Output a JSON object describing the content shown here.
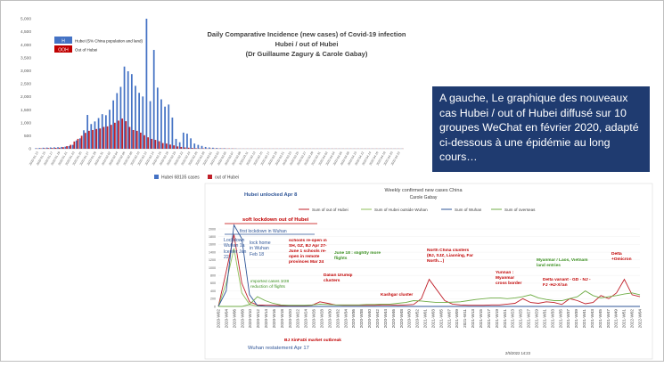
{
  "note_text": "A gauche, Le graphique des nouveaux cas Hubei / out of Hubei diffusé sur 10 groupes WeChat en février 2020, adapté ci-dessous à une épidémie au long cours…",
  "colors": {
    "hubei": "#4472c4",
    "out": "#c0202a",
    "outside_wuhan": "#8fbf5a",
    "wuhan": "#2f5597",
    "overseas": "#70ad47",
    "annot_red": "#c00000",
    "annot_blue": "#2f5597",
    "annot_green": "#3a8f1f",
    "note_bg": "#1f3b70"
  },
  "chart_data": [
    {
      "type": "bar",
      "title": "Daily Comparative  Incidence (new cases) of Covid-19 infection",
      "subtitle1": "Hubei / out of Hubei",
      "subtitle2": "(Dr Guillaume Zagury & Carole Gabay)",
      "legend_top": [
        {
          "swatch": "H",
          "label": "Hubei (5% China population and land)"
        },
        {
          "swatch": "OOH",
          "label": "Out of Hubei"
        }
      ],
      "legend_bottom": [
        {
          "label": "Hubei 68135 cases"
        },
        {
          "label": "out of Hubei"
        }
      ],
      "y_ticks": [
        "5,000",
        "4,500",
        "4,000",
        "3,500",
        "3,000",
        "2,500",
        "2,000",
        "1,500",
        "1,000",
        "500",
        "0"
      ],
      "ylim": [
        0,
        5000
      ],
      "x_tick_labels": [
        "2020.01.13",
        "2020.01.15",
        "2020.01.17",
        "2020.01.19",
        "2020.01.21",
        "2020.01.23",
        "2020.01.25",
        "2020.01.27",
        "2020.01.29",
        "2020.01.31",
        "2020.02.02",
        "2020.02.04",
        "2020.02.06",
        "2020.02.08",
        "2020.02.10",
        "2020.02.12",
        "2020.02.14",
        "2020.02.16",
        "2020.02.18",
        "2020.02.20",
        "2020.02.22",
        "2020.02.24",
        "2020.02.26",
        "2020.02.28",
        "2020.03.01",
        "2020.03.03",
        "2020.03.05",
        "2020.03.07",
        "2020.03.09",
        "2020.03.11",
        "2020.03.13",
        "2020.03.15",
        "2020.03.17",
        "2020.03.19",
        "2020.03.21",
        "2020.03.23",
        "2020.03.25",
        "2020.03.27",
        "2020.03.29",
        "2020.03.31",
        "2020.04.02",
        "2020.04.04",
        "2020.04.06",
        "2020.04.08",
        "2020.04.10",
        "2020.04.12",
        "2020.04.14",
        "2020.04.16",
        "2020.04.18",
        "2020.04.20",
        "2020.04.22"
      ],
      "series": [
        {
          "name": "Hubei 68135 cases",
          "values": [
            20,
            30,
            40,
            45,
            50,
            55,
            60,
            70,
            80,
            105,
            150,
            320,
            400,
            710,
            1300,
            950,
            1050,
            1180,
            1330,
            1290,
            1500,
            1860,
            2140,
            2380,
            3160,
            2980,
            2870,
            2420,
            2150,
            2010,
            5000,
            1830,
            3800,
            2350,
            1900,
            1620,
            1700,
            1200,
            380,
            250,
            620,
            580,
            400,
            200,
            150,
            110,
            70,
            50,
            40,
            30,
            20,
            20,
            10,
            10,
            10,
            5,
            5,
            5,
            5,
            5,
            5,
            5,
            5,
            5,
            5,
            5,
            5,
            5,
            5,
            5,
            5,
            5,
            5,
            5,
            5,
            5,
            5,
            5,
            5,
            5,
            5,
            5,
            5,
            5,
            5,
            5,
            5,
            5,
            5,
            5,
            5,
            5,
            5,
            5,
            5,
            5,
            5,
            5,
            5,
            5
          ]
        },
        {
          "name": "out of Hubei",
          "values": [
            10,
            15,
            20,
            25,
            30,
            35,
            40,
            60,
            100,
            150,
            280,
            380,
            500,
            610,
            690,
            720,
            760,
            780,
            840,
            860,
            920,
            1000,
            1080,
            1160,
            1060,
            840,
            720,
            690,
            620,
            520,
            440,
            380,
            340,
            290,
            220,
            200,
            160,
            130,
            90,
            70,
            50,
            40,
            30,
            20,
            15,
            15,
            10,
            10,
            10,
            10,
            10,
            10,
            10,
            10,
            5,
            5,
            5,
            5,
            5,
            5,
            5,
            5,
            5,
            5,
            5,
            5,
            5,
            5,
            5,
            5,
            5,
            5,
            5,
            5,
            5,
            5,
            5,
            5,
            5,
            5,
            5,
            5,
            5,
            5,
            5,
            5,
            5,
            5,
            5,
            5,
            5,
            5,
            5,
            5,
            5,
            5,
            5,
            5,
            5,
            5
          ]
        }
      ]
    },
    {
      "type": "line",
      "title": "Weekly confirmed new cases China",
      "subtitle": "Carole Gabay",
      "date_stamp": "2/5/2022 14:23",
      "legend": [
        {
          "label": "Sum of out of Hubei"
        },
        {
          "label": "Sum of Hubei outside Wuhan"
        },
        {
          "label": "Sum of Wuhan"
        },
        {
          "label": "Sum of overseas"
        }
      ],
      "y_ticks": [
        "2000",
        "1800",
        "1600",
        "1400",
        "1200",
        "1000",
        "800",
        "600",
        "400",
        "200",
        "0"
      ],
      "ylim": [
        0,
        2000
      ],
      "x_tick_labels": [
        "2020-W02",
        "2020-W04",
        "2020-W06",
        "2020-W08",
        "2020-W10",
        "2020-W12",
        "2020-W14",
        "2020-W16",
        "2020-W18",
        "2020-W20",
        "2020-W22",
        "2020-W24",
        "2020-W26",
        "2020-W28",
        "2020-W30",
        "2020-W32",
        "2020-W34",
        "2020-W36",
        "2020-W38",
        "2020-W40",
        "2020-W42",
        "2020-W44",
        "2020-W46",
        "2020-W48",
        "2020-W50",
        "2020-W52",
        "2021-W01",
        "2021-W03",
        "2021-W05",
        "2021-W07",
        "2021-W09",
        "2021-W11",
        "2021-W13",
        "2021-W15",
        "2021-W17",
        "2021-W19",
        "2021-W21",
        "2021-W23",
        "2021-W25",
        "2021-W27",
        "2021-W29",
        "2021-W31",
        "2021-W33",
        "2021-W35",
        "2021-W37",
        "2021-W39",
        "2021-W41",
        "2021-W43",
        "2021-W45",
        "2021-W47",
        "2021-W49",
        "2021-W51",
        "2022-W02",
        "2022-W04"
      ],
      "series": [
        {
          "name": "Sum of out of Hubei",
          "values": [
            0,
            900,
            1850,
            600,
            120,
            40,
            30,
            30,
            20,
            20,
            20,
            20,
            30,
            120,
            80,
            40,
            30,
            30,
            30,
            30,
            30,
            40,
            40,
            30,
            40,
            50,
            200,
            700,
            420,
            150,
            60,
            40,
            30,
            30,
            30,
            40,
            40,
            60,
            80,
            200,
            100,
            80,
            120,
            100,
            50,
            200,
            150,
            70,
            100,
            280,
            200,
            350,
            700,
            300,
            250
          ]
        },
        {
          "name": "Sum of Hubei outside Wuhan",
          "values": [
            0,
            600,
            1500,
            350,
            50,
            10,
            5,
            0,
            0,
            0,
            0,
            0,
            0,
            0,
            0,
            0,
            0,
            0,
            0,
            0,
            0,
            0,
            0,
            0,
            0,
            0,
            0,
            0,
            0,
            0,
            0,
            0,
            0,
            0,
            0,
            0,
            0,
            0,
            0,
            0,
            0,
            0,
            0,
            0,
            0,
            0,
            0,
            0,
            0,
            0,
            0,
            0,
            0,
            0,
            0
          ]
        },
        {
          "name": "Sum of Wuhan",
          "values": [
            0,
            400,
            2100,
            1750,
            300,
            20,
            5,
            0,
            0,
            0,
            0,
            0,
            0,
            0,
            0,
            0,
            0,
            0,
            0,
            0,
            0,
            0,
            0,
            0,
            0,
            0,
            0,
            0,
            0,
            0,
            0,
            0,
            0,
            0,
            0,
            0,
            0,
            0,
            0,
            0,
            0,
            0,
            0,
            0,
            0,
            0,
            0,
            0,
            0,
            0,
            0,
            0,
            0,
            0,
            0
          ]
        },
        {
          "name": "Sum of overseas",
          "values": [
            0,
            0,
            0,
            0,
            50,
            250,
            150,
            80,
            40,
            30,
            30,
            30,
            40,
            60,
            50,
            40,
            40,
            40,
            40,
            50,
            50,
            60,
            60,
            80,
            100,
            150,
            140,
            120,
            100,
            100,
            110,
            120,
            150,
            180,
            200,
            220,
            220,
            200,
            220,
            250,
            300,
            220,
            180,
            150,
            150,
            200,
            250,
            400,
            280,
            220,
            250,
            280,
            320,
            350,
            300
          ]
        }
      ],
      "annotations": {
        "hubei_unlocked": "Hubei unlocked Apr 8",
        "soft_lockdown": "soft lockdown out of Hubei",
        "first_lockdown": "first lockdown in Wuhan",
        "lockdown_wuhan": "Lockdown Wuhan 1a lcenter Jan 22",
        "lock_home": "lock home in Wuhan Feb 18",
        "imported": "imported cases 3/28 reduction of flights",
        "schools": "schools re-open in SH, GZ, BJ Apr 27- June 1 schools re-open in remote provinces Mar 24",
        "june18": "June 18 : slightly more flights",
        "dalian": "Dalian Urumqi clusters",
        "kashgar": "Kashgar cluster",
        "north_china": "North China clusters (BJ, SJZ, Liaoning, Far North…)",
        "yunnan": "Yunnan : Myanmar cross border",
        "myanmar_laos": "Myanmar / Laos, Vietnam  land entries",
        "delta": "Delta variant - GD - NJ - FJ -HJ-Xi'an",
        "delta_omicron": "Delta +Omicron",
        "xinfadi": "BJ XinFaDi market outbreak",
        "restatement": "Wuhan restatement Apr 17"
      }
    }
  ]
}
